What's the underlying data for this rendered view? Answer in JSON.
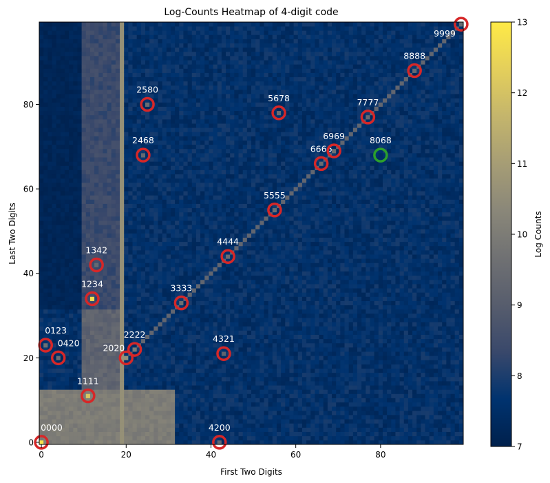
{
  "chart_data": {
    "type": "heatmap",
    "title": "Log-Counts Heatmap of 4-digit code",
    "xlabel": "First Two Digits",
    "ylabel": "Last Two Digits",
    "xlim": [
      0,
      99
    ],
    "ylim": [
      0,
      99
    ],
    "xticks": [
      0,
      20,
      40,
      60,
      80
    ],
    "yticks": [
      0,
      20,
      40,
      60,
      80
    ],
    "colorbar": {
      "label": "Log Counts",
      "min": 7,
      "max": 13,
      "ticks": [
        7,
        8,
        9,
        10,
        11,
        12,
        13
      ],
      "colormap": "cividis",
      "stops": [
        "#00204c",
        "#00336f",
        "#39486b",
        "#575d6d",
        "#707173",
        "#8a8779",
        "#a69d75",
        "#c4b56c",
        "#e4cf5b",
        "#ffea46"
      ]
    },
    "base_log_count": 7.6,
    "features": {
      "diagonal_x_equals_y_log_count": 9.3,
      "column_x_19_log_count": 10.6,
      "lower_left_block_x_0_to_31_y_0_to_12_log_count": 10.0,
      "vertical_band_x_10_to_19_y_0_to_99_log_count": 9.2,
      "dark_region_x_0_to_11_y_32_to_99_log_count": 7.2
    },
    "annotations": [
      {
        "label": "0000",
        "x": 0,
        "y": 0,
        "log_count": 12.8,
        "ring": "red"
      },
      {
        "label": "1111",
        "x": 11,
        "y": 11,
        "log_count": 12.1,
        "ring": "red"
      },
      {
        "label": "0123",
        "x": 1,
        "y": 23,
        "log_count": 9.6,
        "ring": "red"
      },
      {
        "label": "0420",
        "x": 4,
        "y": 20,
        "log_count": 9.5,
        "ring": "red"
      },
      {
        "label": "2020",
        "x": 20,
        "y": 20,
        "log_count": 10.6,
        "ring": "red"
      },
      {
        "label": "2222",
        "x": 22,
        "y": 22,
        "log_count": 10.0,
        "ring": "red"
      },
      {
        "label": "1234",
        "x": 12,
        "y": 34,
        "log_count": 12.7,
        "ring": "red"
      },
      {
        "label": "1342",
        "x": 13,
        "y": 42,
        "log_count": 9.4,
        "ring": "red"
      },
      {
        "label": "3333",
        "x": 33,
        "y": 33,
        "log_count": 9.6,
        "ring": "red"
      },
      {
        "label": "4444",
        "x": 44,
        "y": 44,
        "log_count": 9.5,
        "ring": "red"
      },
      {
        "label": "4321",
        "x": 43,
        "y": 21,
        "log_count": 9.2,
        "ring": "red"
      },
      {
        "label": "4200",
        "x": 42,
        "y": 0,
        "log_count": 9.3,
        "ring": "red"
      },
      {
        "label": "2468",
        "x": 24,
        "y": 68,
        "log_count": 9.4,
        "ring": "red"
      },
      {
        "label": "2580",
        "x": 25,
        "y": 80,
        "log_count": 9.5,
        "ring": "red"
      },
      {
        "label": "5555",
        "x": 55,
        "y": 55,
        "log_count": 9.6,
        "ring": "red"
      },
      {
        "label": "5678",
        "x": 56,
        "y": 78,
        "log_count": 9.5,
        "ring": "red"
      },
      {
        "label": "6666",
        "x": 66,
        "y": 66,
        "log_count": 9.5,
        "ring": "red"
      },
      {
        "label": "6969",
        "x": 69,
        "y": 69,
        "log_count": 9.6,
        "ring": "red"
      },
      {
        "label": "7777",
        "x": 77,
        "y": 77,
        "log_count": 9.4,
        "ring": "red"
      },
      {
        "label": "8068",
        "x": 80,
        "y": 68,
        "log_count": 7.4,
        "ring": "green"
      },
      {
        "label": "8888",
        "x": 88,
        "y": 88,
        "log_count": 9.4,
        "ring": "red"
      },
      {
        "label": "9999",
        "x": 99,
        "y": 99,
        "log_count": 9.5,
        "ring": "red"
      }
    ]
  }
}
